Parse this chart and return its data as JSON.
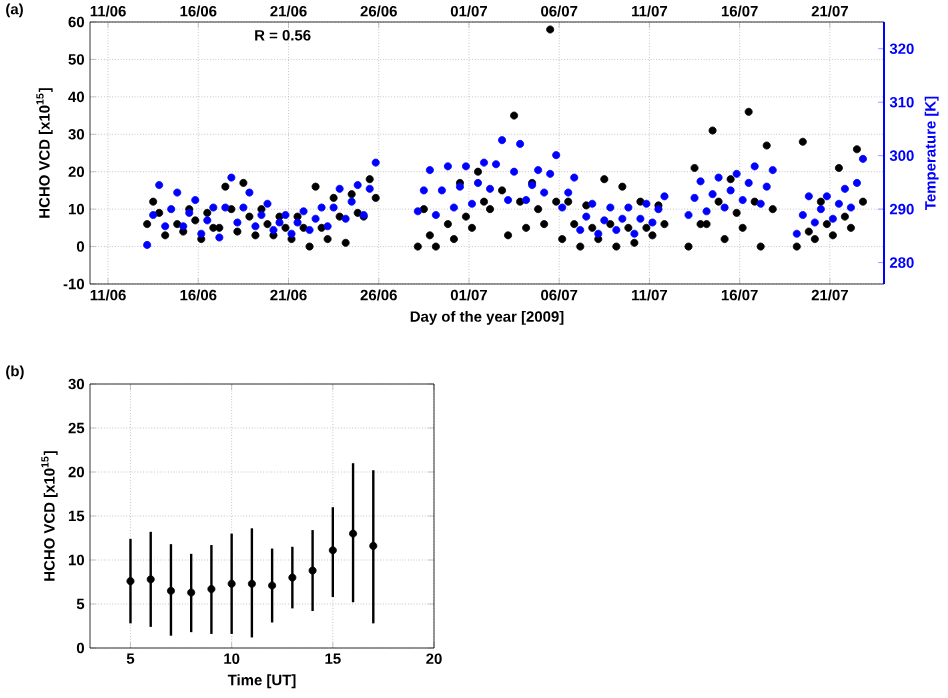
{
  "chart_data": [
    {
      "type": "scatter",
      "title": "(a)",
      "xlabel": "Day of the year [2009]",
      "ylabel": "HCHO VCD [x10$^{15}$]",
      "y2label": "Temperature [K]",
      "annotations": [
        "R = 0.56"
      ],
      "x": [
        "2009-06-13T04:00",
        "2009-06-13T12:00",
        "2009-06-13T20:00",
        "2009-06-14T04:00",
        "2009-06-14T12:00",
        "2009-06-14T20:00",
        "2009-06-15T04:00",
        "2009-06-15T12:00",
        "2009-06-15T20:00",
        "2009-06-16T04:00",
        "2009-06-16T12:00",
        "2009-06-16T20:00",
        "2009-06-17T04:00",
        "2009-06-17T12:00",
        "2009-06-17T20:00",
        "2009-06-18T04:00",
        "2009-06-18T12:00",
        "2009-06-18T20:00",
        "2009-06-19T04:00",
        "2009-06-19T12:00",
        "2009-06-19T20:00",
        "2009-06-20T04:00",
        "2009-06-20T12:00",
        "2009-06-20T20:00",
        "2009-06-21T04:00",
        "2009-06-21T12:00",
        "2009-06-21T20:00",
        "2009-06-22T04:00",
        "2009-06-22T12:00",
        "2009-06-22T20:00",
        "2009-06-23T04:00",
        "2009-06-23T12:00",
        "2009-06-23T20:00",
        "2009-06-24T04:00",
        "2009-06-24T12:00",
        "2009-06-24T20:00",
        "2009-06-25T04:00",
        "2009-06-25T12:00",
        "2009-06-25T20:00",
        "2009-06-28T04:00",
        "2009-06-28T12:00",
        "2009-06-28T20:00",
        "2009-06-29T04:00",
        "2009-06-29T12:00",
        "2009-06-29T20:00",
        "2009-06-30T04:00",
        "2009-06-30T12:00",
        "2009-06-30T20:00",
        "2009-07-01T04:00",
        "2009-07-01T12:00",
        "2009-07-01T20:00",
        "2009-07-02T04:00",
        "2009-07-02T12:00",
        "2009-07-02T20:00",
        "2009-07-03T04:00",
        "2009-07-03T12:00",
        "2009-07-03T20:00",
        "2009-07-04T04:00",
        "2009-07-04T12:00",
        "2009-07-04T20:00",
        "2009-07-05T04:00",
        "2009-07-05T12:00",
        "2009-07-05T20:00",
        "2009-07-06T04:00",
        "2009-07-06T12:00",
        "2009-07-06T20:00",
        "2009-07-07T04:00",
        "2009-07-07T12:00",
        "2009-07-07T20:00",
        "2009-07-08T04:00",
        "2009-07-08T12:00",
        "2009-07-08T20:00",
        "2009-07-09T04:00",
        "2009-07-09T12:00",
        "2009-07-09T20:00",
        "2009-07-10T04:00",
        "2009-07-10T12:00",
        "2009-07-10T20:00",
        "2009-07-11T04:00",
        "2009-07-11T12:00",
        "2009-07-11T20:00",
        "2009-07-13T04:00",
        "2009-07-13T12:00",
        "2009-07-13T20:00",
        "2009-07-14T04:00",
        "2009-07-14T12:00",
        "2009-07-14T20:00",
        "2009-07-15T04:00",
        "2009-07-15T12:00",
        "2009-07-15T20:00",
        "2009-07-16T04:00",
        "2009-07-16T12:00",
        "2009-07-16T20:00",
        "2009-07-17T04:00",
        "2009-07-17T12:00",
        "2009-07-17T20:00",
        "2009-07-19T04:00",
        "2009-07-19T12:00",
        "2009-07-19T20:00",
        "2009-07-20T04:00",
        "2009-07-20T12:00",
        "2009-07-20T20:00",
        "2009-07-21T04:00",
        "2009-07-21T12:00",
        "2009-07-21T20:00",
        "2009-07-22T04:00",
        "2009-07-22T12:00",
        "2009-07-22T20:00"
      ],
      "series": [
        {
          "color": "#000000",
          "values": [
            6,
            12,
            9,
            3,
            null,
            6,
            4,
            10,
            7,
            2,
            9,
            5,
            5,
            16,
            10,
            4,
            17,
            8,
            3,
            10,
            6,
            3,
            8,
            5,
            2,
            8,
            5,
            0,
            16,
            5,
            2,
            13,
            8,
            1,
            14,
            9,
            8,
            18,
            13,
            0,
            10,
            3,
            0,
            null,
            6,
            2,
            17,
            8,
            5,
            20,
            12,
            10,
            null,
            15,
            3,
            35,
            12,
            5,
            17,
            10,
            6,
            58,
            12,
            2,
            12,
            6,
            0,
            11,
            5,
            2,
            18,
            6,
            0,
            16,
            5,
            1,
            12,
            5,
            3,
            11,
            6,
            0,
            21,
            6,
            6,
            31,
            12,
            2,
            18,
            9,
            5,
            36,
            12,
            0,
            27,
            10,
            0,
            28,
            4,
            2,
            12,
            6,
            3,
            21,
            8,
            5,
            26,
            12
          ]
        },
        {
          "color": "#0000ff",
          "axis": "y2",
          "values": [
            283.3,
            288.9,
            294.5,
            286.8,
            290.0,
            293.1,
            286.8,
            289.3,
            291.7,
            285.4,
            287.9,
            290.3,
            284.7,
            290.3,
            295.9,
            287.5,
            290.3,
            293.1,
            286.8,
            288.9,
            291.0,
            286.1,
            287.5,
            288.9,
            285.4,
            287.5,
            289.6,
            286.1,
            288.2,
            290.3,
            286.8,
            290.3,
            293.8,
            288.2,
            291.4,
            294.5,
            288.9,
            293.8,
            298.7,
            289.6,
            293.5,
            297.3,
            288.9,
            293.5,
            298.0,
            290.3,
            294.2,
            298.0,
            291.0,
            294.9,
            298.7,
            293.8,
            298.4,
            302.9,
            291.7,
            297.0,
            302.2,
            291.7,
            294.5,
            297.3,
            293.1,
            296.6,
            300.1,
            290.3,
            293.1,
            295.9,
            286.1,
            288.6,
            291.0,
            285.4,
            287.9,
            290.3,
            286.1,
            288.2,
            290.3,
            285.4,
            288.2,
            291.0,
            287.5,
            290.0,
            292.4,
            288.9,
            292.1,
            295.2,
            289.6,
            292.8,
            295.9,
            290.3,
            293.5,
            296.6,
            291.7,
            294.9,
            298.0,
            291.0,
            294.2,
            297.3,
            285.4,
            288.9,
            292.4,
            287.5,
            290.0,
            292.4,
            288.2,
            291.0,
            293.8,
            290.3,
            294.9,
            299.4
          ]
        }
      ],
      "xlim": [
        "2009-06-10",
        "2009-07-24"
      ],
      "xticks": [
        {
          "value": "2009-06-11",
          "label": "11/06"
        },
        {
          "value": "2009-06-16",
          "label": "16/06"
        },
        {
          "value": "2009-06-21",
          "label": "21/06"
        },
        {
          "value": "2009-06-26",
          "label": "26/06"
        },
        {
          "value": "2009-07-01",
          "label": "01/07"
        },
        {
          "value": "2009-07-06",
          "label": "06/07"
        },
        {
          "value": "2009-07-11",
          "label": "11/07"
        },
        {
          "value": "2009-07-16",
          "label": "16/07"
        },
        {
          "value": "2009-07-21",
          "label": "21/07"
        }
      ],
      "x2lim": [
        "2009-06-10",
        "2009-07-24"
      ],
      "x2ticks": [
        {
          "value": "2009-06-11",
          "label": "11/06"
        },
        {
          "value": "2009-06-16",
          "label": "16/06"
        },
        {
          "value": "2009-06-21",
          "label": "21/06"
        },
        {
          "value": "2009-06-26",
          "label": "26/06"
        },
        {
          "value": "2009-07-01",
          "label": "01/07"
        },
        {
          "value": "2009-07-06",
          "label": "06/07"
        },
        {
          "value": "2009-07-11",
          "label": "11/07"
        },
        {
          "value": "2009-07-16",
          "label": "16/07"
        },
        {
          "value": "2009-07-21",
          "label": "21/07"
        }
      ],
      "ylim": [
        -10,
        60
      ],
      "yticks": [
        -10,
        0,
        10,
        20,
        30,
        40,
        50,
        60
      ],
      "y2lim": [
        276,
        325
      ],
      "y2ticks": [
        280,
        290,
        300,
        310,
        320
      ],
      "grid": true,
      "marker": "circle"
    },
    {
      "type": "scatter",
      "title": "(b)",
      "xlabel": "Time [UT]",
      "ylabel": "HCHO VCD [x10$^{15}$]",
      "x": [
        5,
        6,
        7,
        8,
        9,
        10,
        11,
        12,
        13,
        14,
        15,
        16,
        17
      ],
      "values": [
        7.6,
        7.8,
        6.5,
        6.3,
        6.7,
        7.3,
        7.3,
        7.1,
        8.0,
        8.8,
        11.1,
        13.0,
        11.6
      ],
      "errors": [
        [
          2.8,
          12.4
        ],
        [
          2.4,
          13.2
        ],
        [
          1.4,
          11.8
        ],
        [
          1.8,
          10.7
        ],
        [
          1.6,
          11.7
        ],
        [
          1.6,
          13.0
        ],
        [
          1.2,
          13.6
        ],
        [
          2.9,
          11.3
        ],
        [
          4.5,
          11.5
        ],
        [
          4.2,
          13.4
        ],
        [
          5.8,
          16.0
        ],
        [
          5.2,
          21.0
        ],
        [
          2.8,
          20.2
        ]
      ],
      "color": "#000000",
      "xlim": [
        3,
        20
      ],
      "xticks": [
        5,
        10,
        15,
        20
      ],
      "ylim": [
        0,
        30
      ],
      "yticks": [
        0,
        5,
        10,
        15,
        20,
        25,
        30
      ],
      "grid": true,
      "marker": "circle"
    }
  ]
}
